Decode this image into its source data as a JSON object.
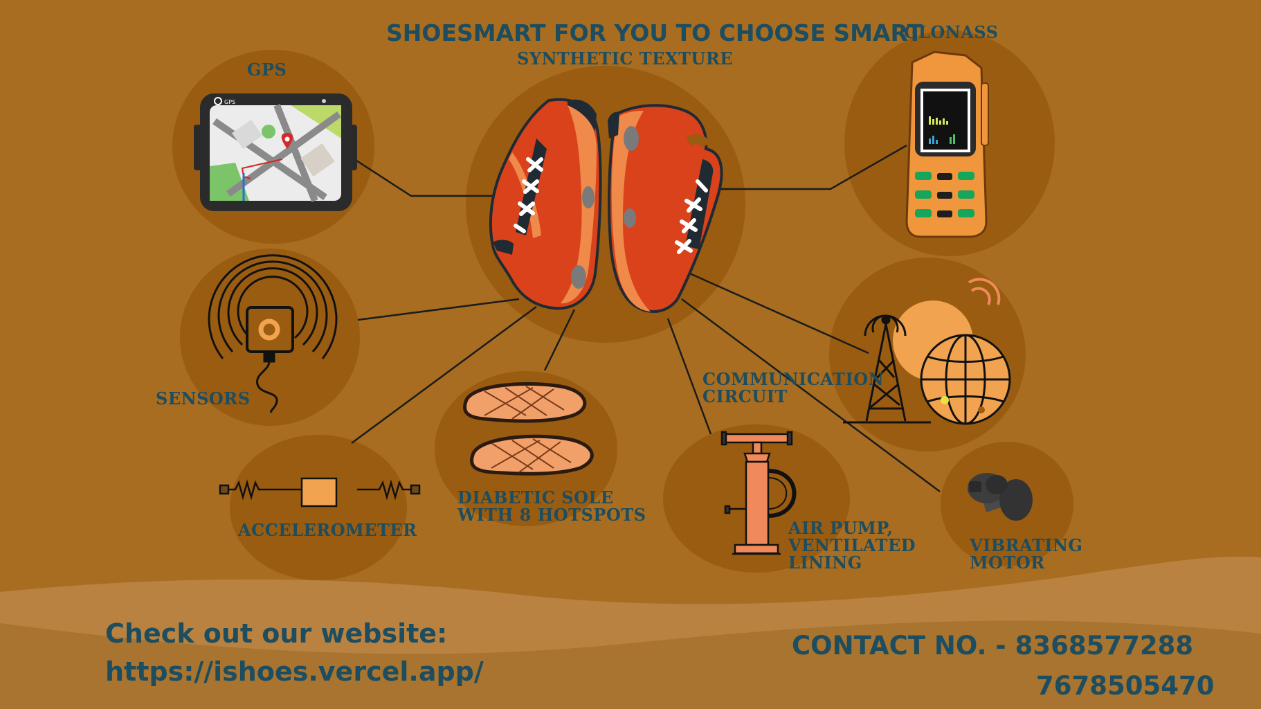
{
  "title": "SHOESMART FOR YOU TO CHOOSE SMART",
  "center_label": "SYNTHETIC TEXTURE",
  "nodes": {
    "gps": {
      "label": "GPS",
      "screen_tag": "GPS"
    },
    "glonass": {
      "label": "GLONASS"
    },
    "sensors": {
      "label": "SENSORS"
    },
    "communication": {
      "line1": "COMMUNICATION",
      "line2": "CIRCUIT"
    },
    "accelerometer": {
      "label": "ACCELEROMETER"
    },
    "diabetic_sole": {
      "line1": "DIABETIC SOLE",
      "line2": "WITH 8 HOTSPOTS"
    },
    "air_pump": {
      "line1": "AIR PUMP,",
      "line2": "VENTILATED",
      "line3": "LINING"
    },
    "vibrating_motor": {
      "line1": "VIBRATING",
      "line2": "MOTOR"
    }
  },
  "footer": {
    "website_label": "Check out our website:",
    "website_url": "https://ishoes.vercel.app/",
    "contact_label": "CONTACT NO. - 8368577288",
    "contact_alt": "7678505470"
  },
  "colors": {
    "background": "#a86d20",
    "circle": "#9a5c10",
    "text": "#1d4d5e",
    "shoe_red": "#d9421a",
    "shoe_orange": "#f08a4b",
    "accent_orange": "#f2a34f"
  }
}
